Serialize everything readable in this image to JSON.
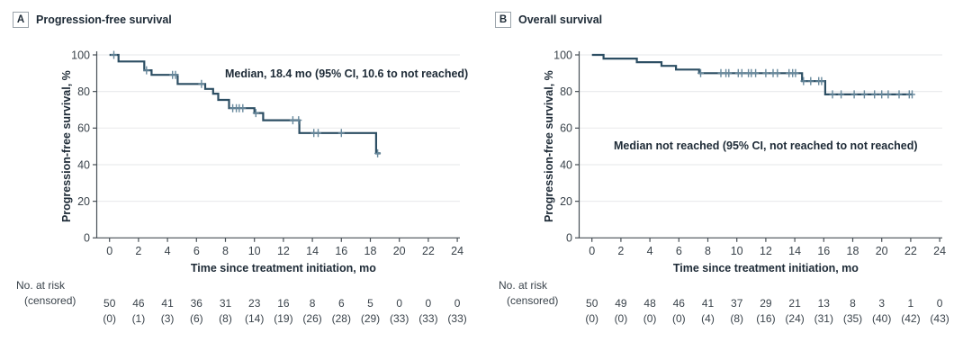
{
  "colors": {
    "curve": "#2c4e63",
    "censor": "#67889c",
    "grid": "#ebecee",
    "axis": "#474f56",
    "text": "#3a434b",
    "heading": "#1d2a36"
  },
  "panels": [
    {
      "letter": "A",
      "title": "Progression-free survival"
    },
    {
      "letter": "B",
      "title": "Overall survival"
    }
  ],
  "chart_data": [
    {
      "type": "line",
      "subtype": "kaplan-meier-step",
      "title": "Progression-free survival",
      "annotation": "Median, 18.4 mo (95% CI, 10.6 to not reached)",
      "xlabel": "Time since treatment initiation, mo",
      "ylabel": "Progression-free survival, %",
      "xlim": [
        0,
        24
      ],
      "ylim": [
        0,
        100
      ],
      "xticks": [
        0,
        2,
        4,
        6,
        8,
        10,
        12,
        14,
        16,
        18,
        20,
        22,
        24
      ],
      "yticks": [
        0,
        20,
        40,
        60,
        80,
        100
      ],
      "grid": true,
      "steps": [
        [
          0,
          100
        ],
        [
          0.62,
          96.4
        ],
        [
          2.4,
          91.6
        ],
        [
          2.9,
          89.1
        ],
        [
          4.7,
          84.1
        ],
        [
          6.6,
          81.4
        ],
        [
          7.15,
          78.8
        ],
        [
          7.5,
          75.4
        ],
        [
          8.25,
          70.9
        ],
        [
          10.0,
          68.2
        ],
        [
          10.6,
          64.3
        ],
        [
          13.1,
          57.3
        ],
        [
          18.4,
          46.2
        ]
      ],
      "end_time": 18.7,
      "censor_marks": [
        [
          0.3,
          100
        ],
        [
          2.55,
          91.6
        ],
        [
          4.35,
          89.1
        ],
        [
          4.55,
          89.1
        ],
        [
          6.35,
          84.1
        ],
        [
          8.5,
          70.9
        ],
        [
          8.75,
          70.9
        ],
        [
          8.95,
          70.9
        ],
        [
          9.2,
          70.9
        ],
        [
          10.1,
          68.2
        ],
        [
          12.65,
          64.3
        ],
        [
          13.05,
          64.3
        ],
        [
          14.1,
          57.3
        ],
        [
          14.4,
          57.3
        ],
        [
          16.0,
          57.3
        ],
        [
          18.5,
          46.2
        ]
      ],
      "at_risk": {
        "label": "No. at risk",
        "sub_label": "(censored)",
        "times": [
          0,
          2,
          4,
          6,
          8,
          10,
          12,
          14,
          16,
          18,
          20,
          22,
          24
        ],
        "n": [
          "50",
          "46",
          "41",
          "36",
          "31",
          "23",
          "16",
          "8",
          "6",
          "5",
          "0",
          "0",
          "0"
        ],
        "censored": [
          "(0)",
          "(1)",
          "(3)",
          "(6)",
          "(8)",
          "(14)",
          "(19)",
          "(26)",
          "(28)",
          "(29)",
          "(33)",
          "(33)",
          "(33)"
        ]
      }
    },
    {
      "type": "line",
      "subtype": "kaplan-meier-step",
      "title": "Overall survival",
      "annotation": "Median not reached (95% CI, not reached to not reached)",
      "xlabel": "Time since treatment initiation, mo",
      "ylabel": "Progression-free survival, %",
      "xlim": [
        0,
        24
      ],
      "ylim": [
        0,
        100
      ],
      "xticks": [
        0,
        2,
        4,
        6,
        8,
        10,
        12,
        14,
        16,
        18,
        20,
        22,
        24
      ],
      "yticks": [
        0,
        20,
        40,
        60,
        80,
        100
      ],
      "grid": true,
      "steps": [
        [
          0,
          100
        ],
        [
          0.8,
          98
        ],
        [
          3.1,
          96
        ],
        [
          4.8,
          94
        ],
        [
          5.8,
          92
        ],
        [
          7.4,
          90
        ],
        [
          14.5,
          85.7
        ],
        [
          16.1,
          78.4
        ]
      ],
      "end_time": 22.15,
      "censor_marks": [
        [
          7.5,
          90
        ],
        [
          8.9,
          90
        ],
        [
          9.25,
          90
        ],
        [
          9.45,
          90
        ],
        [
          10.1,
          90
        ],
        [
          10.35,
          90
        ],
        [
          10.8,
          90
        ],
        [
          11.0,
          90
        ],
        [
          11.3,
          90
        ],
        [
          12.0,
          90
        ],
        [
          12.5,
          90
        ],
        [
          12.8,
          90
        ],
        [
          13.6,
          90
        ],
        [
          13.85,
          90
        ],
        [
          14.05,
          90
        ],
        [
          14.6,
          85.7
        ],
        [
          15.1,
          85.7
        ],
        [
          15.65,
          85.7
        ],
        [
          15.85,
          85.7
        ],
        [
          16.6,
          78.4
        ],
        [
          17.2,
          78.4
        ],
        [
          18.1,
          78.4
        ],
        [
          18.8,
          78.4
        ],
        [
          19.5,
          78.4
        ],
        [
          20.0,
          78.4
        ],
        [
          20.45,
          78.4
        ],
        [
          21.2,
          78.4
        ],
        [
          21.9,
          78.4
        ],
        [
          22.1,
          78.4
        ]
      ],
      "at_risk": {
        "label": "No. at risk",
        "sub_label": "(censored)",
        "times": [
          0,
          2,
          4,
          6,
          8,
          10,
          12,
          14,
          16,
          18,
          20,
          22,
          24
        ],
        "n": [
          "50",
          "49",
          "48",
          "46",
          "41",
          "37",
          "29",
          "21",
          "13",
          "8",
          "3",
          "1",
          "0"
        ],
        "censored": [
          "(0)",
          "(0)",
          "(0)",
          "(0)",
          "(4)",
          "(8)",
          "(16)",
          "(24)",
          "(31)",
          "(35)",
          "(40)",
          "(42)",
          "(43)"
        ]
      }
    }
  ]
}
